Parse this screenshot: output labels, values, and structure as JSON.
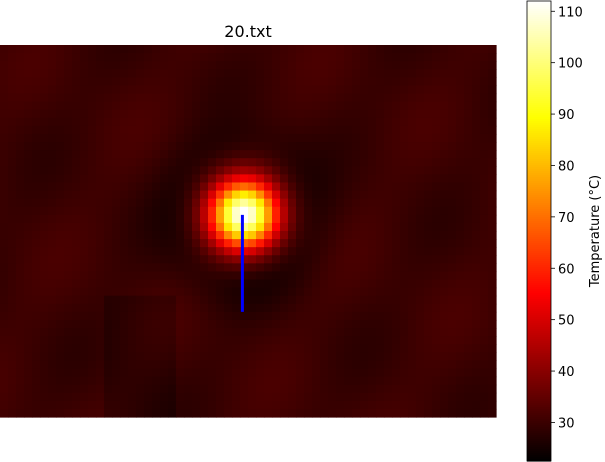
{
  "chart_data": {
    "type": "heatmap",
    "title": "20.txt",
    "colormap": "hot",
    "axes_visible": false,
    "colorbar": {
      "label": "Temperature (°C)",
      "min": 22.5,
      "max": 112,
      "ticks": [
        30,
        40,
        50,
        60,
        70,
        80,
        90,
        100,
        110
      ]
    },
    "grid": {
      "cols": 62,
      "rows": 46
    },
    "background_temp": 30,
    "hotspot": {
      "col": 30.5,
      "row": 21,
      "peak_temp": 112,
      "radius_cells": 2.8
    },
    "annotation_line": {
      "color": "#0000ff",
      "col": 30.3,
      "row_start": 21,
      "row_end": 33
    }
  }
}
